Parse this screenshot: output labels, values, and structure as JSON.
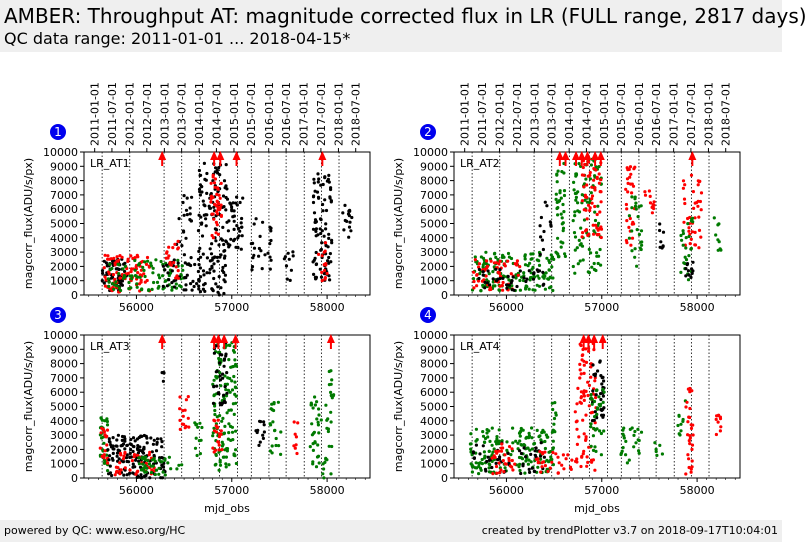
{
  "header": {
    "title": "AMBER: Throughput AT: magnitude corrected flux in LR (FULL range, 2817 days)",
    "subtitle": "QC data range: 2011-01-01 ... 2018-04-15*"
  },
  "footer": {
    "left": "powered by QC: www.eso.org/HC",
    "right": "created by trendPlotter v3.7 on 2018-09-17T10:04:01"
  },
  "colors": {
    "black": "#000000",
    "red": "#ff0000",
    "green": "#007a00",
    "badge": "#0000ee"
  },
  "chart_data": {
    "type": "scatter",
    "date_ticks": [
      "2011-01-01",
      "2011-07-01",
      "2012-01-01",
      "2012-07-01",
      "2013-01-01",
      "2013-07-01",
      "2014-01-01",
      "2014-07-01",
      "2015-01-01",
      "2015-07-01",
      "2016-01-01",
      "2016-07-01",
      "2017-01-01",
      "2017-07-01",
      "2018-01-01",
      "2018-07-01"
    ],
    "date_tick_mjd": [
      55562,
      55743,
      55927,
      56109,
      56293,
      56474,
      56658,
      56839,
      57023,
      57204,
      57388,
      57570,
      57754,
      57935,
      58119,
      58300
    ],
    "xlabel": "mjd_obs",
    "ylabel": "magcorr_flux(ADU/s/px)",
    "xlim": [
      55450,
      58450
    ],
    "ylim": [
      0,
      10000
    ],
    "x_ticks": [
      56000,
      57000,
      58000
    ],
    "y_ticks": [
      0,
      1000,
      2000,
      3000,
      4000,
      5000,
      6000,
      7000,
      8000,
      9000,
      10000
    ],
    "panels": [
      {
        "number": "1",
        "label": "LR_AT1",
        "dotted_lines_mjd": [
          55640,
          55930,
          56290,
          56475,
          56660,
          56870,
          57060,
          57205,
          57390,
          57570,
          57760,
          57940,
          58125
        ],
        "overflow_arrows": [
          {
            "x": 56270,
            "color": "red"
          },
          {
            "x": 56815,
            "color": "red"
          },
          {
            "x": 56880,
            "color": "red"
          },
          {
            "x": 57050,
            "color": "red"
          },
          {
            "x": 57950,
            "color": "red"
          }
        ],
        "clusters": [
          {
            "color": "black",
            "x": [
              55640,
              55900
            ],
            "y": [
              300,
              2500
            ],
            "n": 70
          },
          {
            "color": "red",
            "x": [
              55650,
              56150
            ],
            "y": [
              200,
              2800
            ],
            "n": 90
          },
          {
            "color": "green",
            "x": [
              55700,
              56500
            ],
            "y": [
              300,
              2500
            ],
            "n": 90
          },
          {
            "color": "black",
            "x": [
              56250,
              56700
            ],
            "y": [
              300,
              2500
            ],
            "n": 40
          },
          {
            "color": "black",
            "x": [
              56420,
              56580
            ],
            "y": [
              2000,
              7000
            ],
            "n": 22
          },
          {
            "color": "red",
            "x": [
              56300,
              56450
            ],
            "y": [
              1000,
              4000
            ],
            "n": 20
          },
          {
            "color": "black",
            "x": [
              56650,
              56950
            ],
            "y": [
              0,
              9500
            ],
            "n": 140
          },
          {
            "color": "red",
            "x": [
              56780,
              56900
            ],
            "y": [
              4000,
              8500
            ],
            "n": 40
          },
          {
            "color": "black",
            "x": [
              56950,
              57120
            ],
            "y": [
              3000,
              7000
            ],
            "n": 40
          },
          {
            "color": "black",
            "x": [
              57200,
              57420
            ],
            "y": [
              1500,
              5500
            ],
            "n": 25
          },
          {
            "color": "black",
            "x": [
              57550,
              57650
            ],
            "y": [
              1000,
              3500
            ],
            "n": 10
          },
          {
            "color": "black",
            "x": [
              57850,
              58050
            ],
            "y": [
              1000,
              8500
            ],
            "n": 90
          },
          {
            "color": "red",
            "x": [
              57900,
              58000
            ],
            "y": [
              1000,
              4000
            ],
            "n": 14
          },
          {
            "color": "black",
            "x": [
              58150,
              58260
            ],
            "y": [
              4000,
              6500
            ],
            "n": 15
          }
        ]
      },
      {
        "number": "2",
        "label": "LR_AT2",
        "dotted_lines_mjd": [
          55640,
          55930,
          56290,
          56475,
          56660,
          56870,
          57060,
          57205,
          57390,
          57570,
          57760,
          57940,
          58125
        ],
        "overflow_arrows": [
          {
            "x": 56560,
            "color": "red"
          },
          {
            "x": 56620,
            "color": "red"
          },
          {
            "x": 56730,
            "color": "red"
          },
          {
            "x": 56790,
            "color": "red"
          },
          {
            "x": 56850,
            "color": "red"
          },
          {
            "x": 56930,
            "color": "red"
          },
          {
            "x": 56990,
            "color": "red"
          },
          {
            "x": 57950,
            "color": "red"
          }
        ],
        "clusters": [
          {
            "color": "green",
            "x": [
              55640,
              56500
            ],
            "y": [
              300,
              3000
            ],
            "n": 150
          },
          {
            "color": "red",
            "x": [
              55650,
              56150
            ],
            "y": [
              300,
              2500
            ],
            "n": 60
          },
          {
            "color": "black",
            "x": [
              55700,
              56400
            ],
            "y": [
              300,
              2000
            ],
            "n": 40
          },
          {
            "color": "black",
            "x": [
              56350,
              56480
            ],
            "y": [
              2000,
              6500
            ],
            "n": 12
          },
          {
            "color": "green",
            "x": [
              56520,
              56620
            ],
            "y": [
              2000,
              9500
            ],
            "n": 40
          },
          {
            "color": "green",
            "x": [
              56700,
              57000
            ],
            "y": [
              1500,
              9500
            ],
            "n": 100
          },
          {
            "color": "red",
            "x": [
              56780,
              57000
            ],
            "y": [
              4000,
              9500
            ],
            "n": 60
          },
          {
            "color": "red",
            "x": [
              57250,
              57350
            ],
            "y": [
              3000,
              9000
            ],
            "n": 30
          },
          {
            "color": "green",
            "x": [
              57280,
              57420
            ],
            "y": [
              2000,
              7000
            ],
            "n": 25
          },
          {
            "color": "red",
            "x": [
              57450,
              57550
            ],
            "y": [
              5500,
              7500
            ],
            "n": 12
          },
          {
            "color": "black",
            "x": [
              57580,
              57650
            ],
            "y": [
              3000,
              5500
            ],
            "n": 8
          },
          {
            "color": "red",
            "x": [
              57850,
              58050
            ],
            "y": [
              3000,
              8500
            ],
            "n": 40
          },
          {
            "color": "green",
            "x": [
              57820,
              57960
            ],
            "y": [
              1000,
              5500
            ],
            "n": 25
          },
          {
            "color": "black",
            "x": [
              57880,
              57960
            ],
            "y": [
              200,
              2500
            ],
            "n": 12
          },
          {
            "color": "green",
            "x": [
              58150,
              58250
            ],
            "y": [
              3000,
              5500
            ],
            "n": 10
          }
        ]
      },
      {
        "number": "3",
        "label": "LR_AT3",
        "dotted_lines_mjd": [
          55640,
          55930,
          56290,
          56475,
          56660,
          56870,
          57060,
          57205,
          57390,
          57570,
          57760,
          57940,
          58125
        ],
        "overflow_arrows": [
          {
            "x": 56270,
            "color": "red"
          },
          {
            "x": 56815,
            "color": "red"
          },
          {
            "x": 56860,
            "color": "red"
          },
          {
            "x": 56920,
            "color": "red"
          },
          {
            "x": 57040,
            "color": "red"
          },
          {
            "x": 58040,
            "color": "red"
          }
        ],
        "clusters": [
          {
            "color": "green",
            "x": [
              55620,
              55700
            ],
            "y": [
              500,
              4500
            ],
            "n": 30
          },
          {
            "color": "red",
            "x": [
              55620,
              55700
            ],
            "y": [
              1000,
              3500
            ],
            "n": 18
          },
          {
            "color": "black",
            "x": [
              55700,
              56300
            ],
            "y": [
              0,
              3000
            ],
            "n": 150
          },
          {
            "color": "red",
            "x": [
              55750,
              56200
            ],
            "y": [
              200,
              1800
            ],
            "n": 40
          },
          {
            "color": "green",
            "x": [
              56000,
              56500
            ],
            "y": [
              200,
              1500
            ],
            "n": 40
          },
          {
            "color": "black",
            "x": [
              56250,
              56300
            ],
            "y": [
              6500,
              7500
            ],
            "n": 4
          },
          {
            "color": "red",
            "x": [
              56450,
              56550
            ],
            "y": [
              3000,
              6000
            ],
            "n": 15
          },
          {
            "color": "green",
            "x": [
              56600,
              56700
            ],
            "y": [
              1500,
              4000
            ],
            "n": 12
          },
          {
            "color": "green",
            "x": [
              56800,
              57050
            ],
            "y": [
              500,
              9500
            ],
            "n": 130
          },
          {
            "color": "black",
            "x": [
              56800,
              56950
            ],
            "y": [
              5000,
              9500
            ],
            "n": 35
          },
          {
            "color": "red",
            "x": [
              56800,
              56900
            ],
            "y": [
              1000,
              4500
            ],
            "n": 20
          },
          {
            "color": "black",
            "x": [
              57250,
              57350
            ],
            "y": [
              2000,
              4000
            ],
            "n": 12
          },
          {
            "color": "green",
            "x": [
              57400,
              57520
            ],
            "y": [
              1500,
              5500
            ],
            "n": 20
          },
          {
            "color": "red",
            "x": [
              57650,
              57700
            ],
            "y": [
              1000,
              4000
            ],
            "n": 8
          },
          {
            "color": "green",
            "x": [
              57820,
              58060
            ],
            "y": [
              0,
              6000
            ],
            "n": 50
          },
          {
            "color": "green",
            "x": [
              58020,
              58070
            ],
            "y": [
              5500,
              8000
            ],
            "n": 10
          }
        ]
      },
      {
        "number": "4",
        "label": "LR_AT4",
        "dotted_lines_mjd": [
          55640,
          55930,
          56290,
          56475,
          56660,
          56870,
          57060,
          57205,
          57390,
          57570,
          57760,
          57940,
          58125
        ],
        "overflow_arrows": [
          {
            "x": 56810,
            "color": "red"
          },
          {
            "x": 56860,
            "color": "red"
          },
          {
            "x": 56920,
            "color": "red"
          },
          {
            "x": 57010,
            "color": "red"
          }
        ],
        "clusters": [
          {
            "color": "green",
            "x": [
              55620,
              56500
            ],
            "y": [
              300,
              3500
            ],
            "n": 170
          },
          {
            "color": "black",
            "x": [
              55650,
              56400
            ],
            "y": [
              300,
              2500
            ],
            "n": 50
          },
          {
            "color": "red",
            "x": [
              55850,
              56100
            ],
            "y": [
              300,
              2500
            ],
            "n": 30
          },
          {
            "color": "red",
            "x": [
              56300,
              56700
            ],
            "y": [
              300,
              2000
            ],
            "n": 30
          },
          {
            "color": "green",
            "x": [
              56480,
              56530
            ],
            "y": [
              2500,
              5500
            ],
            "n": 10
          },
          {
            "color": "red",
            "x": [
              56720,
              56940
            ],
            "y": [
              500,
              9500
            ],
            "n": 80
          },
          {
            "color": "black",
            "x": [
              56900,
              57030
            ],
            "y": [
              4000,
              8500
            ],
            "n": 35
          },
          {
            "color": "green",
            "x": [
              56880,
              57030
            ],
            "y": [
              1500,
              6500
            ],
            "n": 35
          },
          {
            "color": "green",
            "x": [
              57200,
              57420
            ],
            "y": [
              1000,
              3500
            ],
            "n": 25
          },
          {
            "color": "green",
            "x": [
              57550,
              57650
            ],
            "y": [
              1500,
              2500
            ],
            "n": 6
          },
          {
            "color": "green",
            "x": [
              57780,
              57880
            ],
            "y": [
              3000,
              5500
            ],
            "n": 10
          },
          {
            "color": "red",
            "x": [
              57880,
              57960
            ],
            "y": [
              0,
              6500
            ],
            "n": 30
          },
          {
            "color": "red",
            "x": [
              58200,
              58250
            ],
            "y": [
              3000,
              4500
            ],
            "n": 10
          }
        ]
      }
    ]
  }
}
